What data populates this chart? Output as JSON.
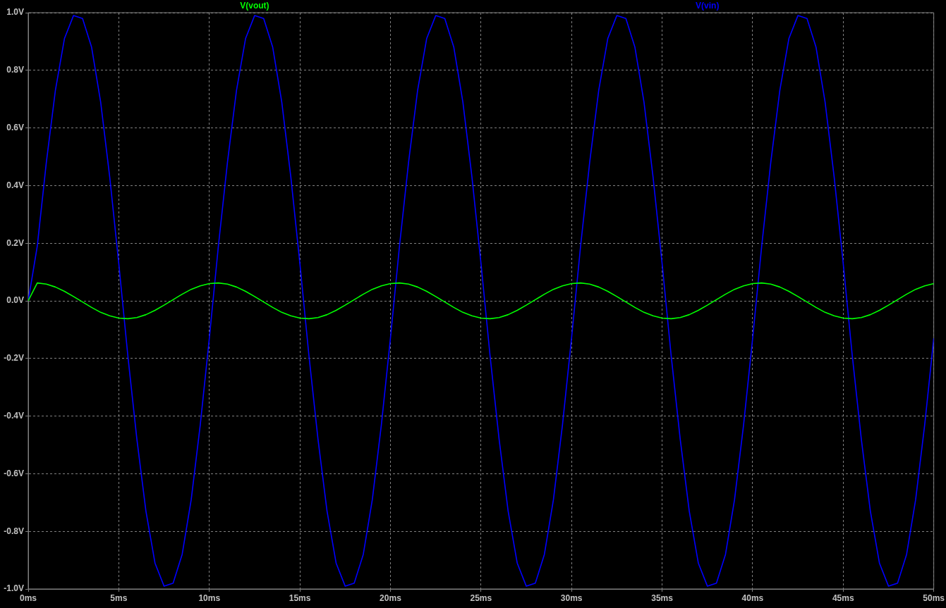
{
  "chart_data": {
    "type": "line",
    "x": [
      0,
      0.5,
      1,
      1.5,
      2,
      2.5,
      3,
      3.5,
      4,
      4.5,
      5,
      5.5,
      6,
      6.5,
      7,
      7.5,
      8,
      8.5,
      9,
      9.5,
      10,
      10.5,
      11,
      11.5,
      12,
      12.5,
      13,
      13.5,
      14,
      14.5,
      15,
      15.5,
      16,
      16.5,
      17,
      17.5,
      18,
      18.5,
      19,
      19.5,
      20,
      20.5,
      21,
      21.5,
      22,
      22.5,
      23,
      23.5,
      24,
      24.5,
      25,
      25.5,
      26,
      26.5,
      27,
      27.5,
      28,
      28.5,
      29,
      29.5,
      30,
      30.5,
      31,
      31.5,
      32,
      32.5,
      33,
      33.5,
      34,
      34.5,
      35,
      35.5,
      36,
      36.5,
      37,
      37.5,
      38,
      38.5,
      39,
      39.5,
      40,
      40.5,
      41,
      41.5,
      42,
      42.5,
      43,
      43.5,
      44,
      44.5,
      45,
      45.5,
      46,
      46.5,
      47,
      47.5,
      48,
      48.5,
      49,
      49.5,
      50
    ],
    "series": [
      {
        "name": "V(vout)",
        "color": "#00ff00",
        "values": [
          0,
          0.062,
          0.058,
          0.048,
          0.033,
          0.015,
          -0.004,
          -0.023,
          -0.04,
          -0.052,
          -0.06,
          -0.062,
          -0.058,
          -0.048,
          -0.033,
          -0.015,
          0.004,
          0.023,
          0.04,
          0.052,
          0.06,
          0.062,
          0.058,
          0.048,
          0.033,
          0.015,
          -0.004,
          -0.023,
          -0.04,
          -0.052,
          -0.06,
          -0.062,
          -0.058,
          -0.048,
          -0.033,
          -0.015,
          0.004,
          0.023,
          0.04,
          0.052,
          0.06,
          0.062,
          0.058,
          0.048,
          0.033,
          0.015,
          -0.004,
          -0.023,
          -0.04,
          -0.052,
          -0.06,
          -0.062,
          -0.058,
          -0.048,
          -0.033,
          -0.015,
          0.004,
          0.023,
          0.04,
          0.052,
          0.06,
          0.062,
          0.058,
          0.048,
          0.033,
          0.015,
          -0.004,
          -0.023,
          -0.04,
          -0.052,
          -0.06,
          -0.062,
          -0.058,
          -0.048,
          -0.033,
          -0.015,
          0.004,
          0.023,
          0.04,
          0.052,
          0.06,
          0.062,
          0.058,
          0.048,
          0.033,
          0.015,
          -0.004,
          -0.023,
          -0.04,
          -0.052,
          -0.06,
          -0.062,
          -0.058,
          -0.048,
          -0.033,
          -0.015,
          0.004,
          0.023,
          0.04,
          0.052,
          0.06
        ]
      },
      {
        "name": "V(vin)",
        "color": "#0000ff",
        "values": [
          0,
          0.19,
          0.48,
          0.73,
          0.91,
          0.99,
          0.98,
          0.88,
          0.69,
          0.43,
          0.13,
          -0.19,
          -0.48,
          -0.73,
          -0.91,
          -0.99,
          -0.98,
          -0.88,
          -0.69,
          -0.43,
          -0.13,
          0.19,
          0.48,
          0.73,
          0.91,
          0.99,
          0.98,
          0.88,
          0.69,
          0.43,
          0.13,
          -0.19,
          -0.48,
          -0.73,
          -0.91,
          -0.99,
          -0.98,
          -0.88,
          -0.69,
          -0.43,
          -0.13,
          0.19,
          0.48,
          0.73,
          0.91,
          0.99,
          0.98,
          0.88,
          0.69,
          0.43,
          0.13,
          -0.19,
          -0.48,
          -0.73,
          -0.91,
          -0.99,
          -0.98,
          -0.88,
          -0.69,
          -0.43,
          -0.13,
          0.19,
          0.48,
          0.73,
          0.91,
          0.99,
          0.98,
          0.88,
          0.69,
          0.43,
          0.13,
          -0.19,
          -0.48,
          -0.73,
          -0.91,
          -0.99,
          -0.98,
          -0.88,
          -0.69,
          -0.43,
          -0.13,
          0.19,
          0.48,
          0.73,
          0.91,
          0.99,
          0.98,
          0.88,
          0.69,
          0.43,
          0.13,
          -0.19,
          -0.48,
          -0.73,
          -0.91,
          -0.99,
          -0.98,
          -0.88,
          -0.69,
          -0.43,
          -0.13
        ]
      }
    ],
    "xlim": [
      0,
      50
    ],
    "xticks": [
      {
        "value": 0,
        "label": "0ms"
      },
      {
        "value": 5,
        "label": "5ms"
      },
      {
        "value": 10,
        "label": "10ms"
      },
      {
        "value": 15,
        "label": "15ms"
      },
      {
        "value": 20,
        "label": "20ms"
      },
      {
        "value": 25,
        "label": "25ms"
      },
      {
        "value": 30,
        "label": "30ms"
      },
      {
        "value": 35,
        "label": "35ms"
      },
      {
        "value": 40,
        "label": "40ms"
      },
      {
        "value": 45,
        "label": "45ms"
      },
      {
        "value": 50,
        "label": "50ms"
      }
    ],
    "ylim": [
      -1,
      1
    ],
    "yticks": [
      {
        "value": -1,
        "label": "-1.0V"
      },
      {
        "value": -0.8,
        "label": "-0.8V"
      },
      {
        "value": -0.6,
        "label": "-0.6V"
      },
      {
        "value": -0.4,
        "label": "-0.4V"
      },
      {
        "value": -0.2,
        "label": "-0.2V"
      },
      {
        "value": 0,
        "label": "0.0V"
      },
      {
        "value": 0.2,
        "label": "0.2V"
      },
      {
        "value": 0.4,
        "label": "0.4V"
      },
      {
        "value": 0.6,
        "label": "0.6V"
      },
      {
        "value": 0.8,
        "label": "0.8V"
      },
      {
        "value": 1,
        "label": "1.0V"
      }
    ],
    "grid": true,
    "legend": "top",
    "marker": "none",
    "line_style": "solid"
  }
}
